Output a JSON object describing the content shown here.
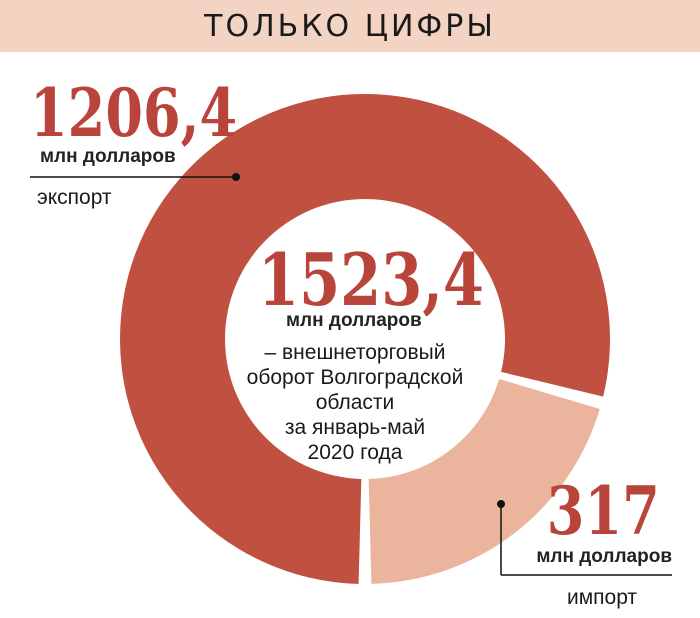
{
  "header": {
    "title": "ТОЛЬКО ЦИФРЫ"
  },
  "colors": {
    "header_bg": "#f3d3c2",
    "export": "#c0503f",
    "import": "#ebb49d",
    "number_text": "#b8443a"
  },
  "chart_data": {
    "type": "pie",
    "style": "donut",
    "total": {
      "value": "1523,4",
      "unit": "млн долларов",
      "description": [
        "– внешнеторговый",
        "оборот Волгоградской",
        "области",
        "за январь-май",
        "2020 года"
      ]
    },
    "slices": [
      {
        "label": "экспорт",
        "value": 1206.4,
        "value_text": "1206,4",
        "unit": "млн долларов"
      },
      {
        "label": "импорт",
        "value": 317,
        "value_text": "317",
        "unit": "млн долларов"
      }
    ]
  }
}
